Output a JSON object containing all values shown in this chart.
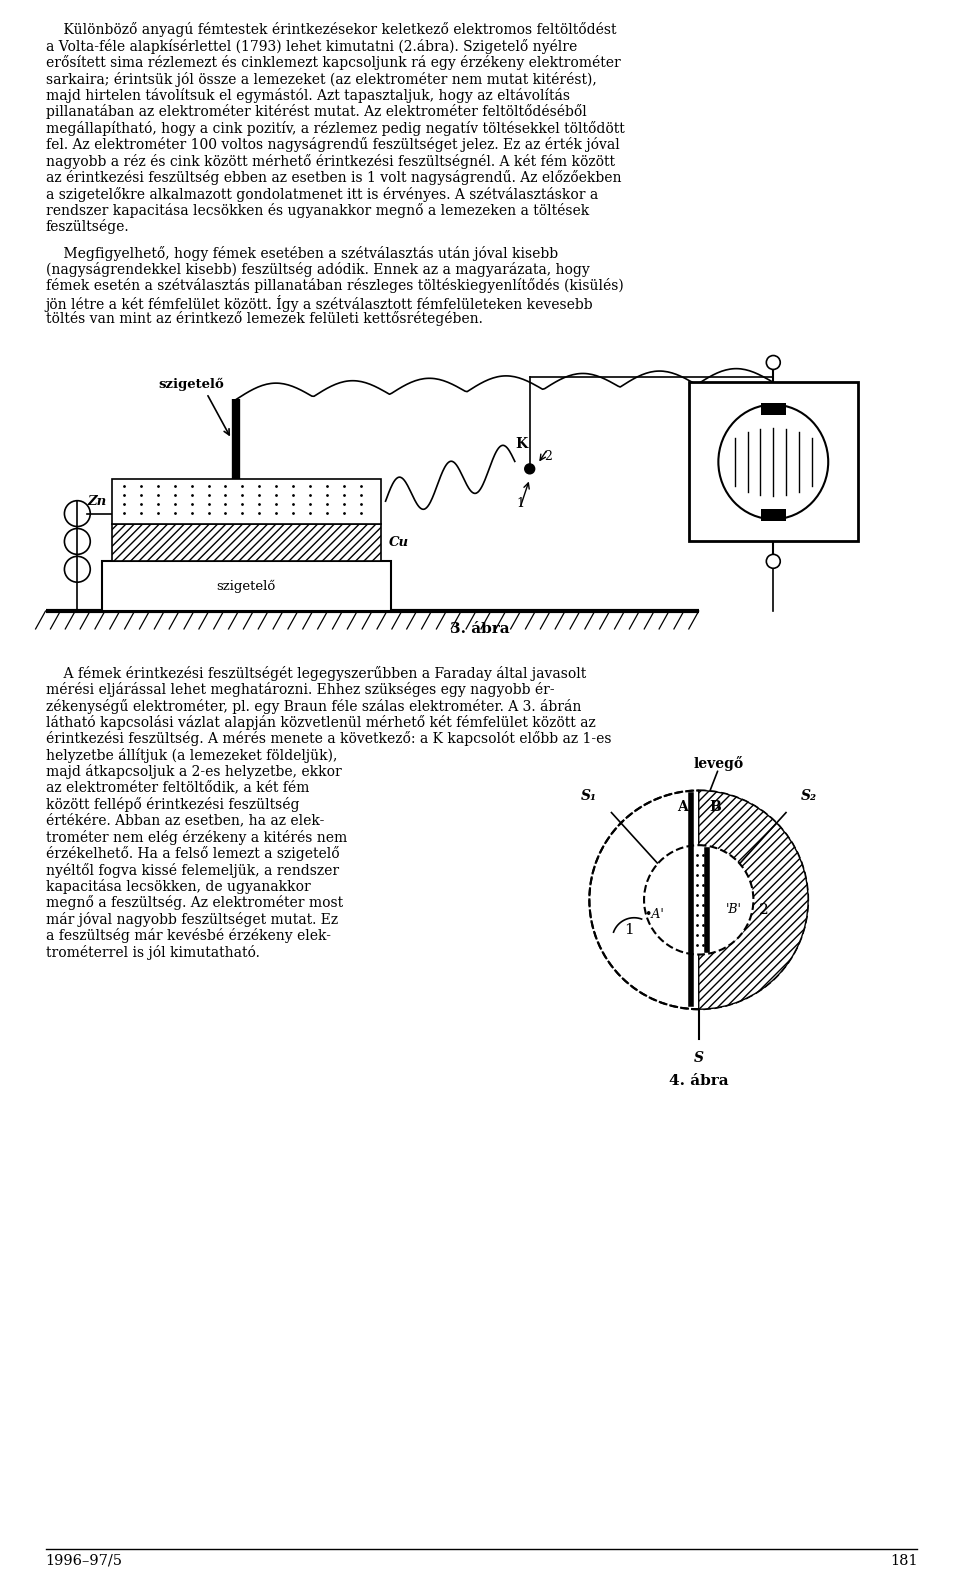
{
  "bg_color": "#ffffff",
  "text_color": "#000000",
  "page_width": 9.6,
  "page_height": 15.77,
  "fig3_caption": "3. ábra",
  "page_num_left": "1996–97/5",
  "page_num_right": "181"
}
